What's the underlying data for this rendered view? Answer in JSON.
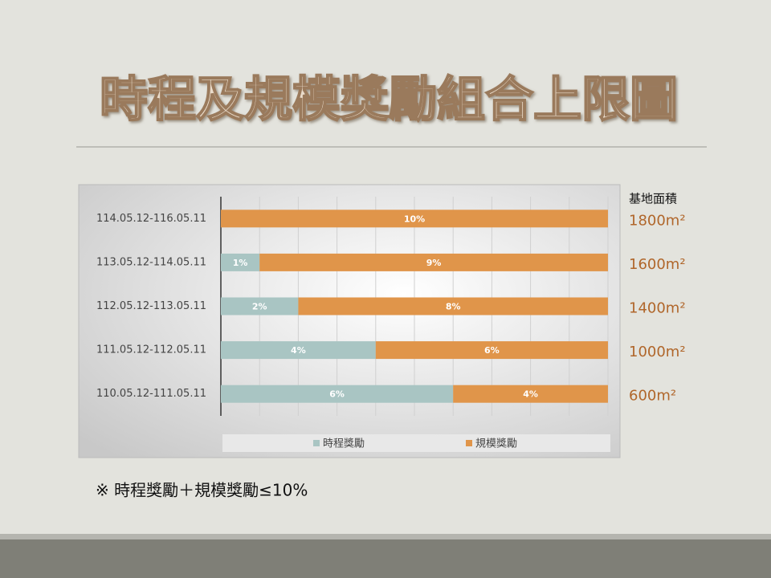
{
  "slide": {
    "title": "時程及規模獎勵組合上限圖",
    "note": "※ 時程獎勵＋規模獎勵≤10%"
  },
  "chart_data": {
    "type": "bar",
    "orientation": "horizontal",
    "stacked": true,
    "categories": [
      "114.05.12-116.05.11",
      "113.05.12-114.05.11",
      "112.05.12-113.05.11",
      "111.05.12-112.05.11",
      "110.05.12-111.05.11"
    ],
    "series": [
      {
        "name": "時程獎勵",
        "color": "#a9c5c3",
        "values": [
          0,
          1,
          2,
          4,
          6
        ],
        "value_labels": [
          null,
          "1%",
          "2%",
          "4%",
          "6%"
        ]
      },
      {
        "name": "規模獎勵",
        "color": "#e0954a",
        "values": [
          10,
          9,
          8,
          6,
          4
        ],
        "value_labels": [
          "10%",
          "9%",
          "8%",
          "6%",
          "4%"
        ]
      }
    ],
    "xlim": [
      0,
      10
    ],
    "xticks": [
      0,
      1,
      2,
      3,
      4,
      5,
      6,
      7,
      8,
      9,
      10
    ],
    "grid": true,
    "legend": "bottom",
    "side_annotation": {
      "title": "基地面積",
      "labels": [
        "1800m²",
        "1600m²",
        "1400m²",
        "1000m²",
        "600m²"
      ]
    }
  }
}
